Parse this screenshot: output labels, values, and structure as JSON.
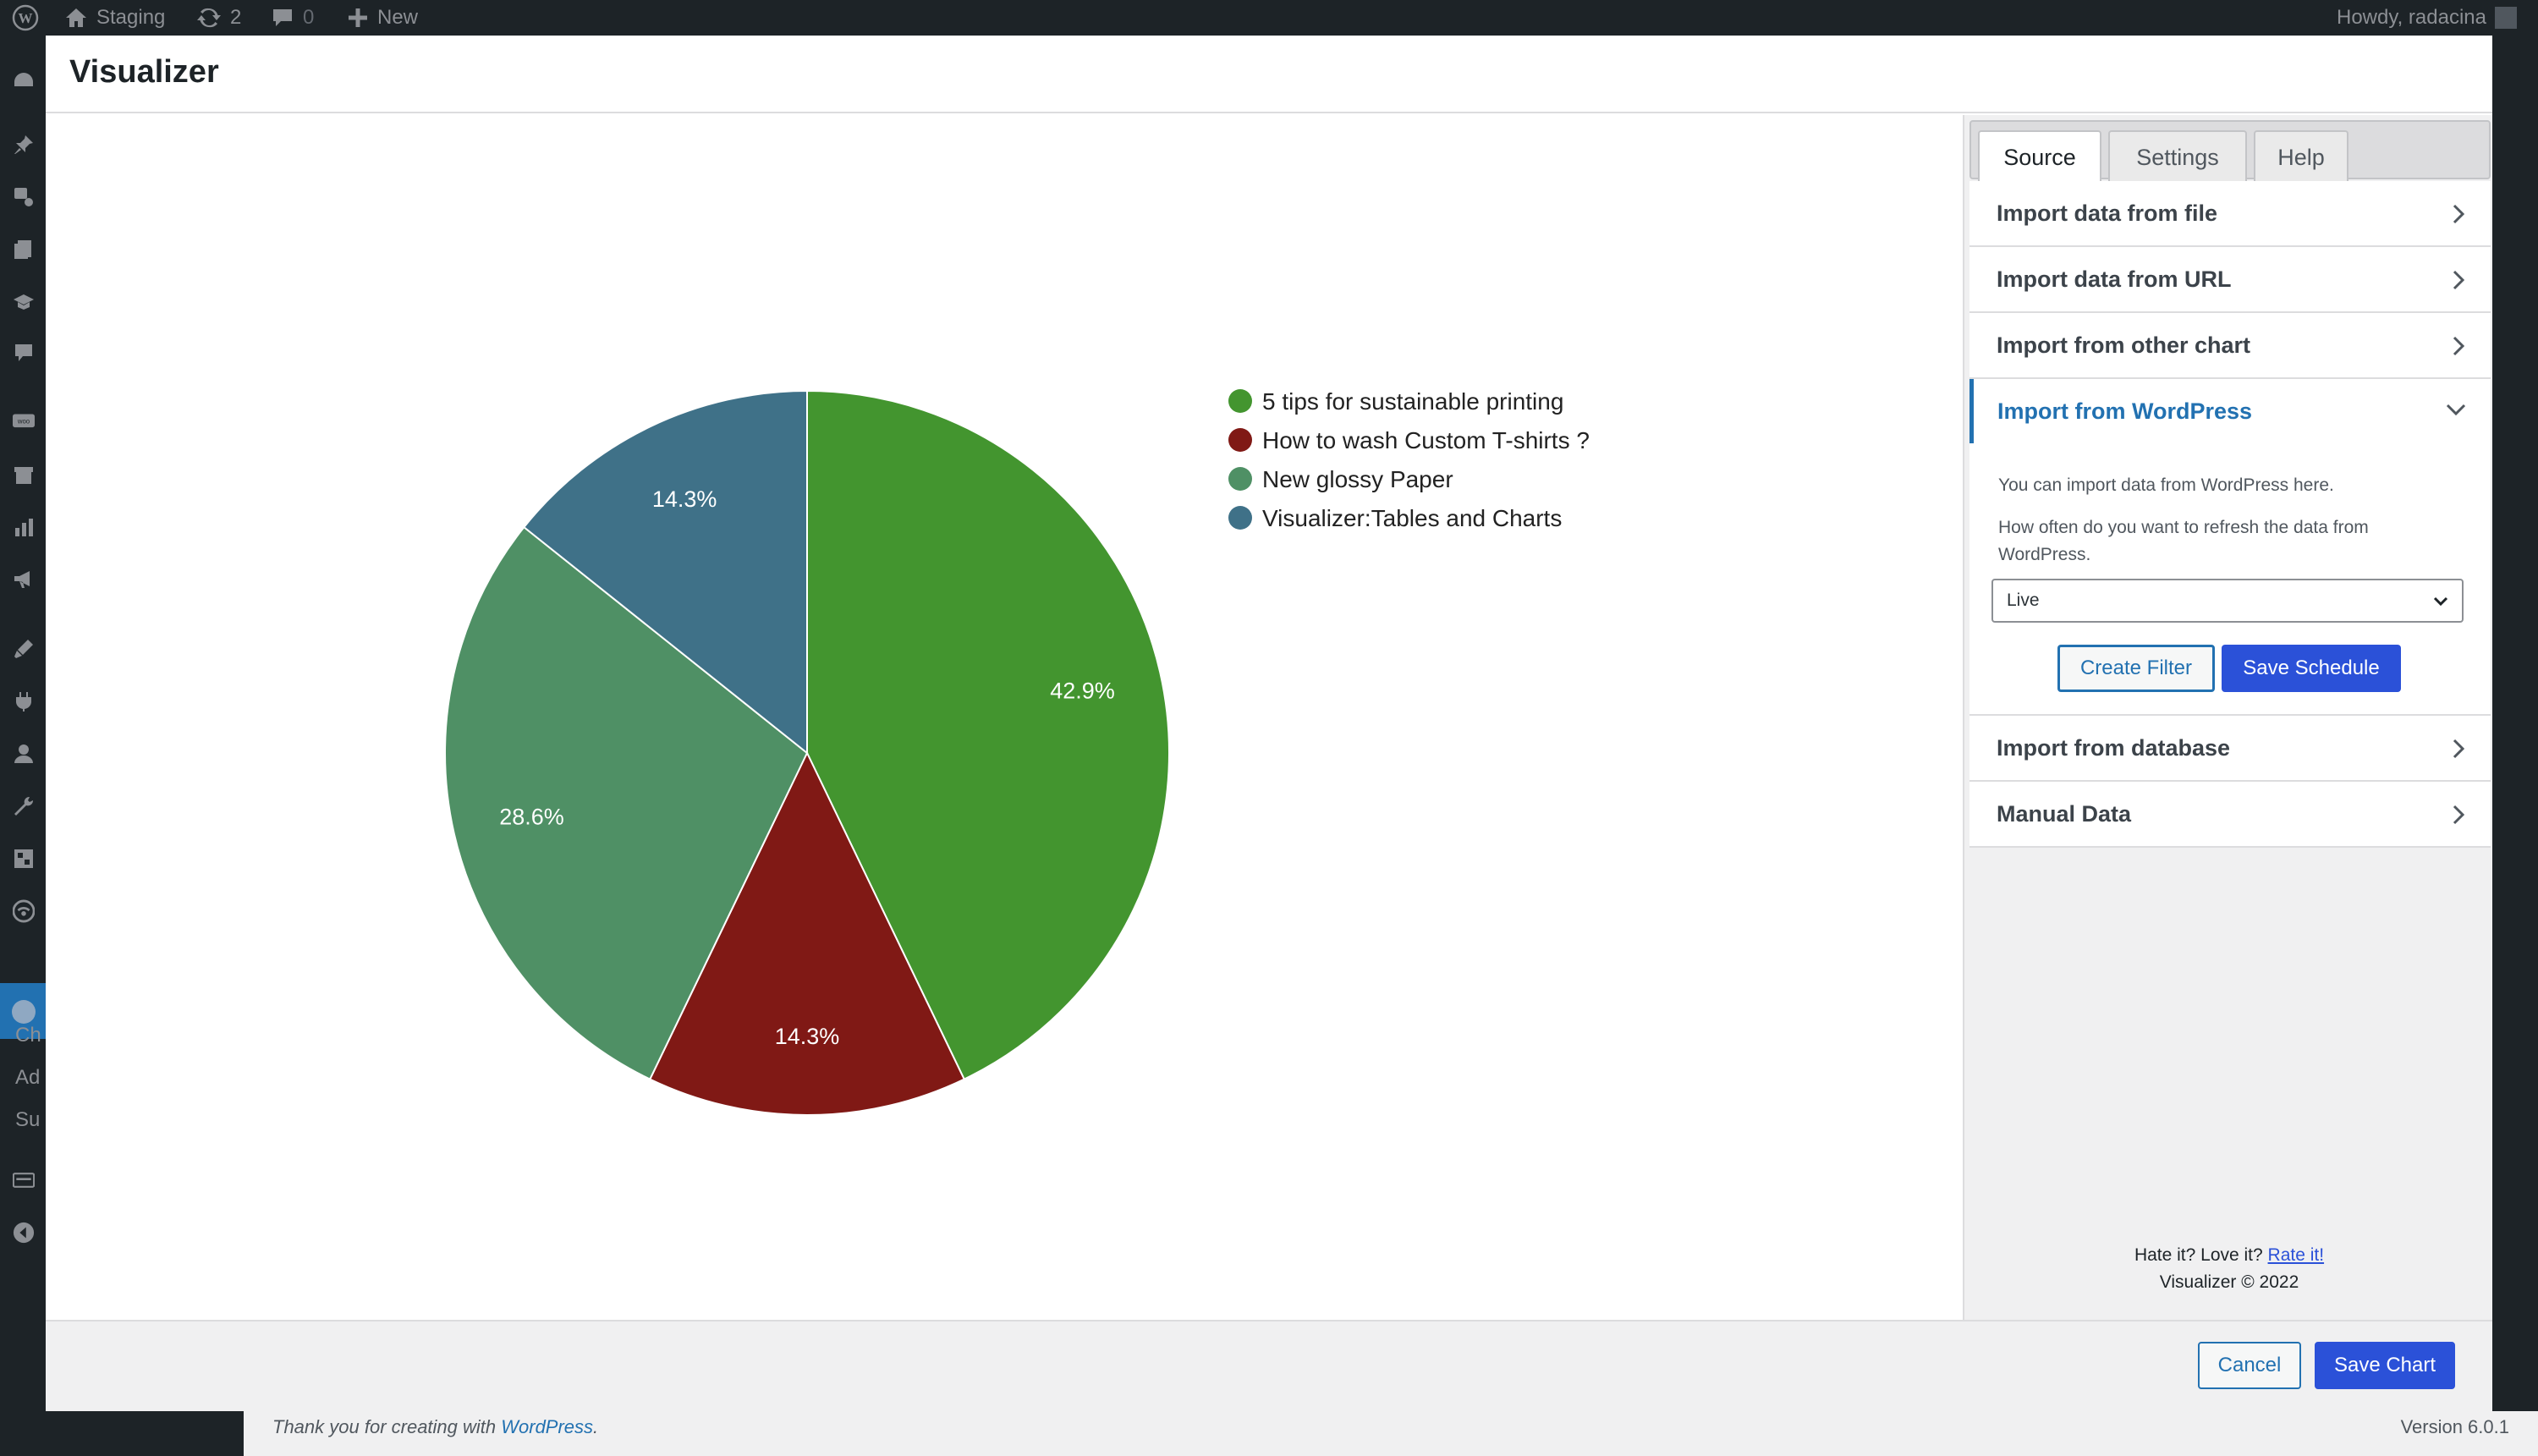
{
  "adminbar": {
    "site_name": "Staging",
    "updates_count": "2",
    "comments_count": "0",
    "new_label": "New",
    "howdy": "Howdy, radacina"
  },
  "admin_menu": {
    "submenu": [
      "Ch",
      "Ad",
      "Su"
    ]
  },
  "footer": {
    "thanks_prefix": "Thank you for creating with ",
    "thanks_link": "WordPress",
    "thanks_suffix": ".",
    "version": "Version 6.0.1"
  },
  "modal": {
    "title": "Visualizer"
  },
  "chart_data": {
    "type": "pie",
    "categories": [
      "5 tips for sustainable printing",
      "How to wash Custom T-shirts ?",
      "New glossy Paper",
      "Visualizer:Tables and Charts"
    ],
    "values": [
      42.9,
      14.3,
      28.6,
      14.3
    ],
    "labels": [
      "42.9%",
      "14.3%",
      "28.6%",
      "14.3%"
    ],
    "colors": [
      "#43952f",
      "#801915",
      "#4f9065",
      "#3f7188"
    ],
    "legend_position": "right"
  },
  "sidebar": {
    "tabs": [
      {
        "label": "Source"
      },
      {
        "label": "Settings"
      },
      {
        "label": "Help"
      }
    ],
    "sections": [
      {
        "label": "Import data from file"
      },
      {
        "label": "Import data from URL"
      },
      {
        "label": "Import from other chart"
      },
      {
        "label": "Import from WordPress"
      },
      {
        "label": "Import from database"
      },
      {
        "label": "Manual Data"
      }
    ],
    "wordpress": {
      "intro": "You can import data from WordPress here.",
      "refresh_line1": "How often do you want to refresh the data from",
      "refresh_line2": "WordPress.",
      "refresh_value": "Live",
      "create_filter": "Create Filter",
      "save_schedule": "Save Schedule"
    },
    "footer": {
      "hate_love": "Hate it? Love it? ",
      "rate": "Rate it!",
      "copyright": "Visualizer © 2022"
    }
  },
  "actions": {
    "cancel": "Cancel",
    "save": "Save Chart"
  },
  "colors": {
    "accent": "#2271b1",
    "primary_button": "#2b51d8"
  }
}
